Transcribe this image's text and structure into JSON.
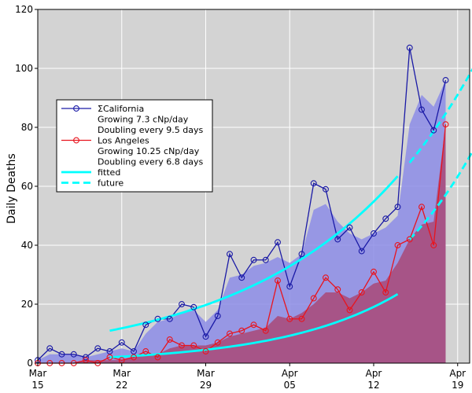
{
  "chart_data": {
    "type": "line",
    "title": "",
    "xlabel": "",
    "ylabel": "Daily Deaths",
    "ylim": [
      0,
      120
    ],
    "xlim": [
      "2020-03-15",
      "2020-04-20"
    ],
    "grid": true,
    "background": "#d3d3d3",
    "yticks": [
      0,
      20,
      40,
      60,
      80,
      100,
      120
    ],
    "xticks": [
      {
        "date": "2020-03-15",
        "label1": "Mar",
        "label2": "15"
      },
      {
        "date": "2020-03-22",
        "label1": "Mar",
        "label2": "22"
      },
      {
        "date": "2020-03-29",
        "label1": "Mar",
        "label2": "29"
      },
      {
        "date": "2020-04-05",
        "label1": "Apr",
        "label2": "05"
      },
      {
        "date": "2020-04-12",
        "label1": "Apr",
        "label2": "12"
      },
      {
        "date": "2020-04-19",
        "label1": "Apr",
        "label2": "19"
      }
    ],
    "legend": {
      "placement": "center-left",
      "entries": [
        {
          "key": "california",
          "label": "ΣCalifornia",
          "marker": "line-circle"
        },
        {
          "key": "ca_growth",
          "label": "Growing 7.3 cNp/day",
          "marker": "none"
        },
        {
          "key": "ca_doubling",
          "label": "Doubling every  9.5 days",
          "marker": "none"
        },
        {
          "key": "la",
          "label": "Los Angeles",
          "marker": "line-circle"
        },
        {
          "key": "la_growth",
          "label": "Growing 10.25 cNp/day",
          "marker": "none"
        },
        {
          "key": "la_doubling",
          "label": "Doubling every  6.8 days",
          "marker": "none"
        },
        {
          "key": "fitted",
          "label": "fitted",
          "marker": "solid"
        },
        {
          "key": "future",
          "label": "future",
          "marker": "dashed"
        }
      ]
    },
    "series": [
      {
        "name": "ΣCalifornia",
        "color": "#1a1aa6",
        "area_color": "#8c8ce6",
        "x": [
          "2020-03-15",
          "2020-03-16",
          "2020-03-17",
          "2020-03-18",
          "2020-03-19",
          "2020-03-20",
          "2020-03-21",
          "2020-03-22",
          "2020-03-23",
          "2020-03-24",
          "2020-03-25",
          "2020-03-26",
          "2020-03-27",
          "2020-03-28",
          "2020-03-29",
          "2020-03-30",
          "2020-03-31",
          "2020-04-01",
          "2020-04-02",
          "2020-04-03",
          "2020-04-04",
          "2020-04-05",
          "2020-04-06",
          "2020-04-07",
          "2020-04-08",
          "2020-04-09",
          "2020-04-10",
          "2020-04-11",
          "2020-04-12",
          "2020-04-13",
          "2020-04-14",
          "2020-04-15",
          "2020-04-16",
          "2020-04-17",
          "2020-04-18"
        ],
        "values": [
          1,
          5,
          3,
          3,
          2,
          5,
          4,
          7,
          4,
          13,
          15,
          15,
          20,
          19,
          9,
          16,
          37,
          29,
          35,
          35,
          41,
          26,
          37,
          61,
          59,
          42,
          46,
          38,
          44,
          49,
          53,
          107,
          86,
          79,
          96
        ],
        "area": [
          1,
          3,
          3,
          3,
          2,
          3,
          4,
          5,
          4,
          10,
          14,
          15,
          17,
          18,
          14,
          18,
          29,
          30,
          33,
          34,
          36,
          34,
          37,
          52,
          54,
          48,
          44,
          42,
          44,
          46,
          50,
          81,
          91,
          87,
          96
        ]
      },
      {
        "name": "Los Angeles",
        "color": "#e8141e",
        "area_color": "#a84d7c",
        "x": [
          "2020-03-15",
          "2020-03-16",
          "2020-03-17",
          "2020-03-18",
          "2020-03-19",
          "2020-03-20",
          "2020-03-21",
          "2020-03-22",
          "2020-03-23",
          "2020-03-24",
          "2020-03-25",
          "2020-03-26",
          "2020-03-27",
          "2020-03-28",
          "2020-03-29",
          "2020-03-30",
          "2020-03-31",
          "2020-04-01",
          "2020-04-02",
          "2020-04-03",
          "2020-04-04",
          "2020-04-05",
          "2020-04-06",
          "2020-04-07",
          "2020-04-08",
          "2020-04-09",
          "2020-04-10",
          "2020-04-11",
          "2020-04-12",
          "2020-04-13",
          "2020-04-14",
          "2020-04-15",
          "2020-04-16",
          "2020-04-17",
          "2020-04-18"
        ],
        "values": [
          0,
          0,
          0,
          0,
          1,
          0,
          2,
          1,
          2,
          4,
          2,
          8,
          6,
          6,
          4,
          7,
          10,
          11,
          13,
          11,
          28,
          15,
          15,
          22,
          29,
          25,
          18,
          24,
          31,
          24,
          40,
          42,
          53,
          40,
          81
        ],
        "area": [
          0,
          0,
          0,
          0,
          1,
          1,
          1,
          1,
          2,
          3,
          3,
          5,
          6,
          6,
          6,
          7,
          9,
          10,
          11,
          12,
          16,
          15,
          17,
          20,
          24,
          24,
          22,
          24,
          27,
          28,
          34,
          42,
          47,
          48,
          81
        ]
      }
    ],
    "fits": [
      {
        "name": "fitted",
        "style": "solid",
        "color": "#00ffff",
        "x0": "2020-03-21",
        "x1": "2020-04-14",
        "y0": 11,
        "rate_per_day": 0.073
      },
      {
        "name": "future",
        "style": "dashed",
        "color": "#00ffff",
        "x0": "2020-04-15",
        "x1": "2020-04-21",
        "y0": 68,
        "rate_per_day": 0.073
      },
      {
        "name": "fitted",
        "style": "solid",
        "color": "#00ffff",
        "x0": "2020-03-21",
        "x1": "2020-04-14",
        "y0": 2,
        "rate_per_day": 0.1025
      },
      {
        "name": "future",
        "style": "dashed",
        "color": "#00ffff",
        "x0": "2020-04-15",
        "x1": "2020-04-21",
        "y0": 42,
        "rate_per_day": 0.1025
      }
    ]
  }
}
